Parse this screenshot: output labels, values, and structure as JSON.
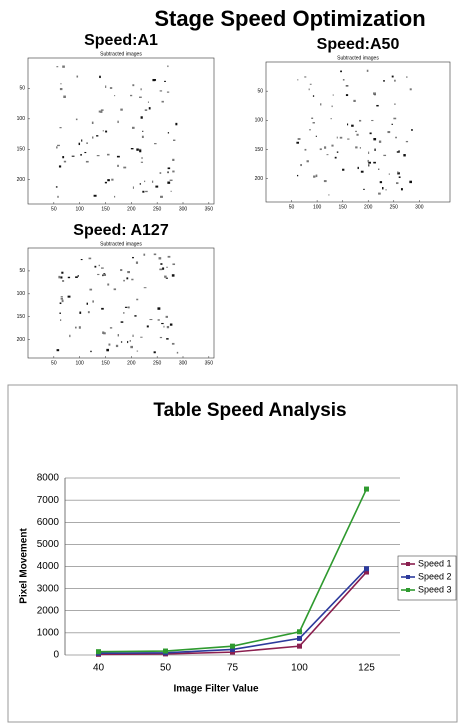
{
  "title": "Stage Speed Optimization",
  "panels": [
    {
      "label": "Speed:A1",
      "image_title": "Subtracted images",
      "xlim": [
        0,
        360
      ],
      "ylim": [
        0,
        240
      ],
      "xticks": [
        50,
        100,
        150,
        200,
        250,
        300,
        350
      ],
      "yticks": [
        50,
        100,
        150,
        200
      ]
    },
    {
      "label": "Speed:A50",
      "image_title": "Subtracted images",
      "xlim": [
        0,
        360
      ],
      "ylim": [
        0,
        240
      ],
      "xticks": [
        50,
        100,
        150,
        200,
        250,
        300
      ],
      "yticks": [
        50,
        100,
        150,
        200
      ]
    },
    {
      "label": "Speed: A127",
      "image_title": "Subtracted images",
      "xlim": [
        0,
        360
      ],
      "ylim": [
        0,
        240
      ],
      "xticks": [
        50,
        100,
        150,
        200,
        250,
        300,
        350
      ],
      "yticks": [
        50,
        100,
        150,
        200
      ]
    }
  ],
  "chart_data": {
    "type": "line",
    "title": "Table Speed Analysis",
    "x_label": "Image Filter Value",
    "y_label": "Pixel Movement",
    "categories": [
      "40",
      "50",
      "75",
      "100",
      "125"
    ],
    "series": [
      {
        "name": "Speed 1",
        "color": "#8b1f4f",
        "values": [
          30,
          50,
          130,
          400,
          3750
        ]
      },
      {
        "name": "Speed 2",
        "color": "#2c3a9c",
        "values": [
          80,
          100,
          250,
          750,
          3900
        ]
      },
      {
        "name": "Speed 3",
        "color": "#2f9a2f",
        "values": [
          150,
          180,
          400,
          1050,
          7500
        ]
      }
    ],
    "ylim": [
      0,
      8000
    ],
    "yticks": [
      0,
      1000,
      2000,
      3000,
      4000,
      5000,
      6000,
      7000,
      8000
    ],
    "grid": true,
    "legend": "right"
  }
}
